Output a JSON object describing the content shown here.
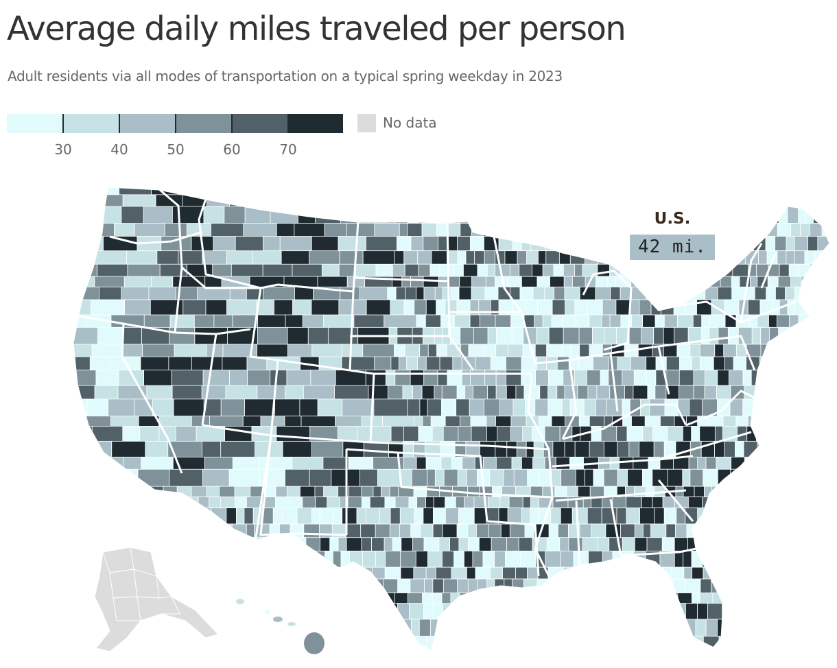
{
  "title": "Average daily miles traveled per person",
  "subtitle": "Adult residents via all modes of transportation on a typical spring weekday in 2023",
  "legend": {
    "bins": [
      {
        "color": "#e1fbfc"
      },
      {
        "color": "#c7e2e5"
      },
      {
        "color": "#a9bec6"
      },
      {
        "color": "#7f9299"
      },
      {
        "color": "#526168"
      },
      {
        "color": "#1f2b31"
      }
    ],
    "breaks": [
      "30",
      "40",
      "50",
      "60",
      "70"
    ],
    "no_data_label": "No data",
    "no_data_color": "#dcdcdc"
  },
  "national_callout": {
    "label": "U.S.",
    "value": "42 mi."
  },
  "colors": {
    "state_border": "#ffffff",
    "county_border": "#ffffff",
    "no_data_fill": "#dcdcdc"
  }
}
